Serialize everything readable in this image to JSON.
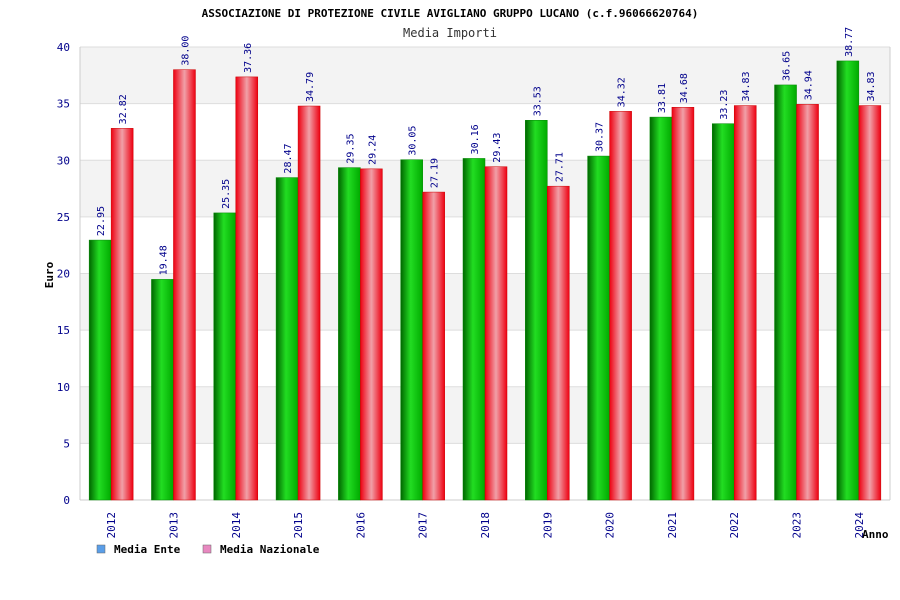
{
  "chart_data": {
    "type": "bar",
    "title": "ASSOCIAZIONE DI PROTEZIONE CIVILE AVIGLIANO GRUPPO LUCANO (c.f.96066620764)",
    "subtitle": "Media Importi",
    "xlabel": "Anno",
    "ylabel": "Euro",
    "ylim": [
      0,
      40
    ],
    "yticks": [
      0,
      5,
      10,
      15,
      20,
      25,
      30,
      35,
      40
    ],
    "grid": true,
    "legend_position": "bottom-left",
    "categories": [
      "2012",
      "2013",
      "2014",
      "2015",
      "2016",
      "2017",
      "2018",
      "2019",
      "2020",
      "2021",
      "2022",
      "2023",
      "2024"
    ],
    "series": [
      {
        "name": "Media Ente",
        "color": "#00cc00",
        "legend_color": "#5a9ee8",
        "values": [
          22.95,
          19.48,
          25.35,
          28.47,
          29.35,
          30.05,
          30.16,
          33.53,
          30.37,
          33.81,
          33.23,
          36.65,
          38.77
        ],
        "labels": [
          "22.95",
          "19.48",
          "25.35",
          "28.47",
          "29.35",
          "30.05",
          "30.16",
          "33.53",
          "30.37",
          "33.81",
          "33.23",
          "36.65",
          "38.77"
        ]
      },
      {
        "name": "Media Nazionale",
        "color": "#ee1122",
        "legend_color": "#e888c0",
        "values": [
          32.82,
          38.0,
          37.36,
          34.79,
          29.24,
          27.19,
          29.43,
          27.71,
          34.32,
          34.68,
          34.83,
          34.94,
          34.83
        ],
        "labels": [
          "32.82",
          "38.00",
          "37.36",
          "34.79",
          "29.24",
          "27.19",
          "29.43",
          "27.71",
          "34.32",
          "34.68",
          "34.83",
          "34.94",
          "34.83"
        ]
      }
    ]
  }
}
